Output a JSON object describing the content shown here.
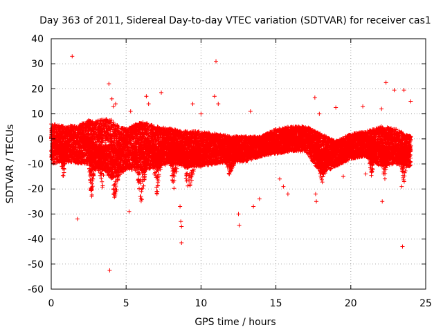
{
  "chart_data": {
    "type": "scatter",
    "title": "Day 363 of 2011, Sidereal Day-to-day VTEC variation (SDTVAR) for receiver cas1",
    "xlabel": "GPS time / hours",
    "ylabel": "SDTVAR / TECUs",
    "xlim": [
      0,
      25
    ],
    "ylim": [
      -60,
      40
    ],
    "xticks": [
      0,
      5,
      10,
      15,
      20,
      25
    ],
    "yticks": [
      40,
      30,
      20,
      10,
      0,
      -10,
      -20,
      -30,
      -40,
      -50,
      -60
    ],
    "xtick_labels": [
      "0",
      "5",
      "10",
      "15",
      "20",
      "25"
    ],
    "ytick_labels": [
      "40",
      "30",
      "20",
      "10",
      "0",
      "-10",
      "-20",
      "-30",
      "-40",
      "-50",
      "-60"
    ],
    "grid": true,
    "marker": "+",
    "color": "#ff0000",
    "x_span_hours": [
      0,
      24
    ],
    "band_center": [
      [
        0.0,
        -2
      ],
      [
        1.0,
        -2
      ],
      [
        2.0,
        -2
      ],
      [
        2.5,
        -1
      ],
      [
        3.0,
        -3
      ],
      [
        3.5,
        -2
      ],
      [
        4.0,
        -4
      ],
      [
        4.5,
        -5
      ],
      [
        5.0,
        -4
      ],
      [
        6.0,
        -3
      ],
      [
        7.0,
        -3
      ],
      [
        8.0,
        -3
      ],
      [
        9.0,
        -4
      ],
      [
        10.0,
        -4
      ],
      [
        11.0,
        -4
      ],
      [
        12.0,
        -4
      ],
      [
        13.0,
        -4
      ],
      [
        14.0,
        -3
      ],
      [
        15.0,
        -1
      ],
      [
        16.0,
        0
      ],
      [
        17.0,
        0
      ],
      [
        18.0,
        -6
      ],
      [
        19.0,
        -6
      ],
      [
        20.0,
        -3
      ],
      [
        21.0,
        -2
      ],
      [
        22.0,
        -3
      ],
      [
        23.0,
        -3
      ],
      [
        24.0,
        -5
      ]
    ],
    "band_halfwidth": [
      [
        0.0,
        8
      ],
      [
        1.0,
        7
      ],
      [
        2.0,
        8
      ],
      [
        2.5,
        9
      ],
      [
        3.0,
        10
      ],
      [
        3.5,
        10
      ],
      [
        4.0,
        12
      ],
      [
        4.5,
        10
      ],
      [
        5.0,
        8
      ],
      [
        6.0,
        10
      ],
      [
        7.0,
        8
      ],
      [
        8.0,
        7
      ],
      [
        9.0,
        7
      ],
      [
        10.0,
        7
      ],
      [
        11.0,
        6
      ],
      [
        12.0,
        5
      ],
      [
        13.0,
        5
      ],
      [
        14.0,
        4
      ],
      [
        15.0,
        5
      ],
      [
        16.0,
        5
      ],
      [
        17.0,
        5
      ],
      [
        18.0,
        8
      ],
      [
        19.0,
        5
      ],
      [
        20.0,
        5
      ],
      [
        21.0,
        5
      ],
      [
        22.0,
        8
      ],
      [
        23.0,
        7
      ],
      [
        24.0,
        6
      ]
    ],
    "dips": [
      {
        "x_from": 0.5,
        "x_to": 1.1,
        "min_y": -16
      },
      {
        "x_from": 2.4,
        "x_to": 3.0,
        "min_y": -25
      },
      {
        "x_from": 3.0,
        "x_to": 3.8,
        "min_y": -21
      },
      {
        "x_from": 3.8,
        "x_to": 4.7,
        "min_y": -28
      },
      {
        "x_from": 5.4,
        "x_to": 6.6,
        "min_y": -26
      },
      {
        "x_from": 6.6,
        "x_to": 7.5,
        "min_y": -23
      },
      {
        "x_from": 7.8,
        "x_to": 8.6,
        "min_y": -21
      },
      {
        "x_from": 8.6,
        "x_to": 9.8,
        "min_y": -22
      },
      {
        "x_from": 11.4,
        "x_to": 12.5,
        "min_y": -16
      },
      {
        "x_from": 17.6,
        "x_to": 18.6,
        "min_y": -18
      },
      {
        "x_from": 21.1,
        "x_to": 21.7,
        "min_y": -16
      },
      {
        "x_from": 21.9,
        "x_to": 22.6,
        "min_y": -17
      },
      {
        "x_from": 23.2,
        "x_to": 23.9,
        "min_y": -18
      }
    ],
    "outliers": [
      [
        1.4,
        33
      ],
      [
        1.75,
        -32
      ],
      [
        3.85,
        22
      ],
      [
        3.9,
        -52.5
      ],
      [
        4.05,
        16
      ],
      [
        4.15,
        13
      ],
      [
        4.3,
        14
      ],
      [
        5.2,
        -29
      ],
      [
        5.3,
        11
      ],
      [
        6.35,
        17
      ],
      [
        6.5,
        14
      ],
      [
        7.35,
        18.5
      ],
      [
        8.6,
        -27
      ],
      [
        8.65,
        -33
      ],
      [
        8.7,
        -35
      ],
      [
        8.7,
        -41.5
      ],
      [
        9.45,
        14
      ],
      [
        10.0,
        10
      ],
      [
        10.9,
        17
      ],
      [
        11.0,
        31
      ],
      [
        11.15,
        14
      ],
      [
        12.5,
        -30
      ],
      [
        12.55,
        -34.5
      ],
      [
        13.3,
        11
      ],
      [
        13.5,
        -27
      ],
      [
        13.9,
        -24
      ],
      [
        15.25,
        -16
      ],
      [
        15.5,
        -19
      ],
      [
        15.8,
        -22
      ],
      [
        17.6,
        16.5
      ],
      [
        17.65,
        -22
      ],
      [
        17.7,
        -25
      ],
      [
        17.9,
        10
      ],
      [
        19.0,
        12.5
      ],
      [
        19.5,
        -15
      ],
      [
        20.8,
        13
      ],
      [
        21.0,
        -14
      ],
      [
        22.05,
        12
      ],
      [
        22.1,
        -25
      ],
      [
        22.35,
        22.5
      ],
      [
        22.9,
        19.5
      ],
      [
        23.4,
        -19
      ],
      [
        23.45,
        -43
      ],
      [
        23.55,
        19.5
      ],
      [
        24.0,
        15
      ]
    ]
  }
}
